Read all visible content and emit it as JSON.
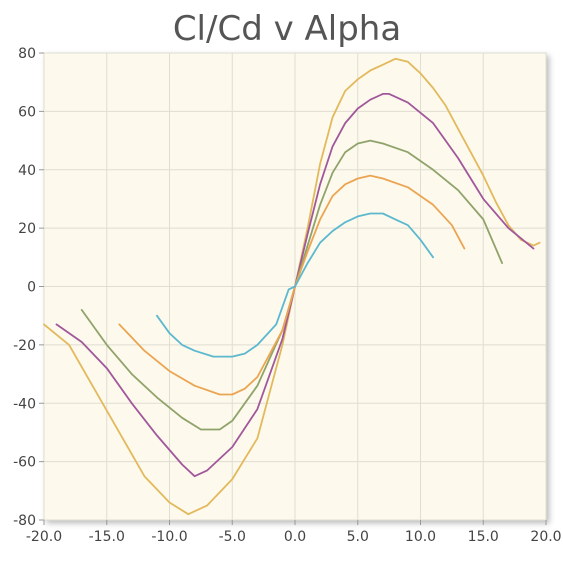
{
  "chart_data": {
    "type": "line",
    "title": "Cl/Cd v Alpha",
    "xlabel": "",
    "ylabel": "",
    "xlim": [
      -20,
      20
    ],
    "ylim": [
      -80,
      80
    ],
    "x_ticks": [
      -20,
      -15,
      -10,
      -5,
      0,
      5,
      10,
      15,
      20
    ],
    "x_tick_labels": [
      "-20.0",
      "-15.0",
      "-10.0",
      "-5.0",
      "0.0",
      "5.0",
      "10.0",
      "15.0",
      "20.0"
    ],
    "y_ticks": [
      -80,
      -60,
      -40,
      -20,
      0,
      20,
      40,
      60,
      80
    ],
    "y_tick_labels": [
      "-80",
      "-60",
      "-40",
      "-20",
      "0",
      "20",
      "40",
      "60",
      "80"
    ],
    "grid": true,
    "legend": "none",
    "plot_background": "#fdf9ec",
    "grid_color": "#e0ddd3",
    "series": [
      {
        "color": "#e2b95c",
        "x": [
          -20,
          -18,
          -16,
          -14,
          -12,
          -10,
          -8.5,
          -7,
          -5,
          -3,
          -1,
          0,
          1,
          2,
          3,
          4,
          5,
          6,
          7,
          8,
          9,
          10,
          11,
          12,
          13,
          14,
          15,
          16,
          17,
          18,
          19,
          19.5
        ],
        "y": [
          -13,
          -20,
          -35,
          -50,
          -65,
          -74,
          -78,
          -75,
          -66,
          -52,
          -20,
          0,
          20,
          42,
          58,
          67,
          71,
          74,
          76,
          78,
          77,
          73,
          68,
          62,
          54,
          46,
          38,
          29,
          21,
          16,
          14,
          15
        ]
      },
      {
        "color": "#a0589b",
        "x": [
          -19,
          -17,
          -15,
          -13,
          -11,
          -9,
          -8,
          -7,
          -5,
          -3,
          -1,
          0,
          1,
          2,
          3,
          4,
          5,
          6,
          7,
          7.5,
          9,
          11,
          13,
          15,
          17,
          19
        ],
        "y": [
          -13,
          -19,
          -28,
          -40,
          -51,
          -61,
          -65,
          -63,
          -55,
          -42,
          -18,
          0,
          18,
          35,
          48,
          56,
          61,
          64,
          66,
          66,
          63,
          56,
          44,
          30,
          20,
          13
        ]
      },
      {
        "color": "#8fa36a",
        "x": [
          -17,
          -15,
          -13,
          -11,
          -9,
          -7.5,
          -6,
          -5,
          -3,
          -1,
          0,
          1,
          2,
          3,
          4,
          5,
          6,
          7,
          9,
          11,
          13,
          15,
          16.5
        ],
        "y": [
          -8,
          -20,
          -30,
          -38,
          -45,
          -49,
          -49,
          -46,
          -34,
          -15,
          0,
          14,
          28,
          39,
          46,
          49,
          50,
          49,
          46,
          40,
          33,
          23,
          8
        ]
      },
      {
        "color": "#eba552",
        "x": [
          -14,
          -12,
          -10,
          -8,
          -6,
          -5,
          -4,
          -3,
          -1,
          0,
          1,
          2,
          3,
          4,
          5,
          6,
          7,
          9,
          11,
          12.5,
          13.5
        ],
        "y": [
          -13,
          -22,
          -29,
          -34,
          -37,
          -37,
          -35,
          -31,
          -15,
          0,
          12,
          23,
          31,
          35,
          37,
          38,
          37,
          34,
          28,
          21,
          13
        ]
      },
      {
        "color": "#5bb8cf",
        "x": [
          -11,
          -10,
          -9,
          -8,
          -6.5,
          -5,
          -4,
          -3,
          -1.5,
          -0.5,
          0,
          1,
          2,
          3,
          4,
          5,
          6,
          7,
          8,
          9,
          10,
          11
        ],
        "y": [
          -10,
          -16,
          -20,
          -22,
          -24,
          -24,
          -23,
          -20,
          -13,
          -1,
          0,
          8,
          15,
          19,
          22,
          24,
          25,
          25,
          23,
          21,
          16,
          10
        ]
      }
    ]
  }
}
